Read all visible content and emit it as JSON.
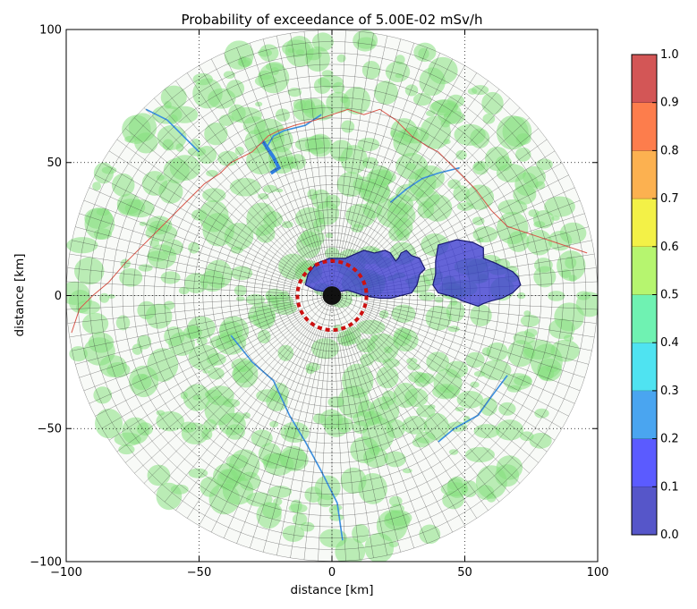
{
  "chart_data": {
    "type": "heatmap",
    "title": "Probability of exceedance of 5.00E-02 mSv/h",
    "xlabel": "distance [km]",
    "ylabel": "distance [km]",
    "xlim": [
      -100,
      100
    ],
    "ylim": [
      -100,
      100
    ],
    "x_ticks": [
      "−100",
      "−50",
      "0",
      "50",
      "100"
    ],
    "y_ticks": [
      "−100",
      "−50",
      "0",
      "50",
      "100"
    ],
    "grid": true,
    "polar_grid_radius_km": 100,
    "colorbar": {
      "min": 0.0,
      "max": 1.0,
      "ticks": [
        "0.0",
        "0.1",
        "0.2",
        "0.3",
        "0.4",
        "0.5",
        "0.6",
        "0.7",
        "0.8",
        "0.9",
        "1.0"
      ],
      "colors": [
        "#5656c9",
        "#5b5bff",
        "#4aa5f0",
        "#4fe3f1",
        "#6ff2b2",
        "#b6f56f",
        "#f3f147",
        "#fcb150",
        "#fd7d4c",
        "#d35656"
      ]
    },
    "exceedance_zones": [
      {
        "probability_band": [
          0.0,
          0.1
        ],
        "polygon": [
          [
            -9,
            8
          ],
          [
            -6,
            12
          ],
          [
            -1,
            14
          ],
          [
            5,
            14
          ],
          [
            12,
            17
          ],
          [
            16,
            16
          ],
          [
            20,
            17
          ],
          [
            22,
            16
          ],
          [
            24,
            13
          ],
          [
            25,
            14
          ],
          [
            26,
            16
          ],
          [
            28,
            17
          ],
          [
            29,
            16
          ],
          [
            30,
            15
          ],
          [
            33,
            14
          ],
          [
            35,
            10
          ],
          [
            33,
            8
          ],
          [
            32,
            4
          ],
          [
            30,
            1
          ],
          [
            26,
            0
          ],
          [
            22,
            -1
          ],
          [
            18,
            -1
          ],
          [
            12,
            0
          ],
          [
            6,
            2
          ],
          [
            0,
            1
          ],
          [
            -6,
            2
          ],
          [
            -10,
            4
          ]
        ]
      },
      {
        "probability_band": [
          0.0,
          0.1
        ],
        "polygon": [
          [
            40,
            19
          ],
          [
            47,
            21
          ],
          [
            53,
            20
          ],
          [
            57,
            18
          ],
          [
            57,
            14
          ],
          [
            62,
            12
          ],
          [
            68,
            9
          ],
          [
            70,
            7
          ],
          [
            71,
            4
          ],
          [
            68,
            1
          ],
          [
            64,
            -1
          ],
          [
            60,
            -2
          ],
          [
            57,
            -3
          ],
          [
            55,
            -4
          ],
          [
            52,
            -3
          ],
          [
            49,
            -2
          ],
          [
            47,
            -1
          ],
          [
            44,
            0
          ],
          [
            40,
            1
          ],
          [
            38,
            4
          ],
          [
            39,
            8
          ],
          [
            39,
            13
          ]
        ]
      }
    ],
    "evacuation_circle_radius_km": 13
  }
}
